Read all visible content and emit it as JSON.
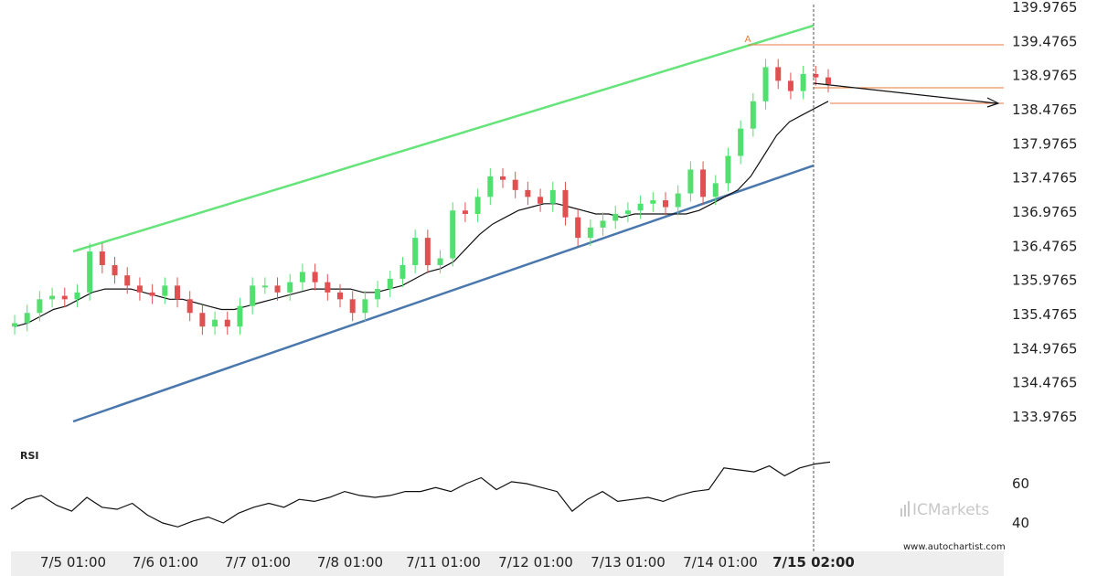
{
  "chart_data": {
    "type": "candlestick",
    "price_axis": {
      "ticks": [
        "139.9765",
        "139.4765",
        "138.9765",
        "138.4765",
        "137.9765",
        "137.4765",
        "136.9765",
        "136.4765",
        "135.9765",
        "135.4765",
        "134.9765",
        "134.4765",
        "133.9765"
      ],
      "range": [
        133.7,
        140.0
      ]
    },
    "time_axis": {
      "ticks": [
        "7/5 01:00",
        "7/6 01:00",
        "7/7 01:00",
        "7/8 01:00",
        "7/11 01:00",
        "7/12 01:00",
        "7/13 01:00",
        "7/14 01:00",
        "7/15 02:00"
      ],
      "highlight": "7/15 02:00"
    },
    "series": [
      {
        "values": [
          135.35,
          135.5,
          135.7,
          135.75,
          135.7,
          135.8,
          136.4,
          136.2,
          136.05,
          135.9,
          135.8,
          135.75,
          135.9,
          135.7,
          135.5,
          135.3,
          135.4,
          135.3,
          135.6,
          135.9,
          135.9,
          135.8,
          135.95,
          136.1,
          135.95,
          135.8,
          135.7,
          135.5,
          135.7,
          135.85,
          136.0,
          136.2,
          136.6,
          136.2,
          136.3,
          137.0,
          136.95,
          137.2,
          137.5,
          137.45,
          137.3,
          137.2,
          137.1,
          137.3,
          136.9,
          136.6,
          136.75,
          136.85,
          136.95,
          137.0,
          137.1,
          137.15,
          137.05,
          137.25,
          137.6,
          137.2,
          137.4,
          137.8,
          138.2,
          138.6,
          139.1,
          138.9,
          138.75,
          139.0,
          138.95,
          138.85
        ]
      },
      {
        "values": [
          135.3,
          135.35,
          135.45,
          135.55,
          135.6,
          135.7,
          135.8,
          135.85,
          135.85,
          135.85,
          135.8,
          135.75,
          135.7,
          135.7,
          135.65,
          135.6,
          135.55,
          135.55,
          135.6,
          135.65,
          135.7,
          135.75,
          135.8,
          135.85,
          135.85,
          135.85,
          135.85,
          135.8,
          135.8,
          135.85,
          135.9,
          136.0,
          136.1,
          136.15,
          136.25,
          136.45,
          136.65,
          136.8,
          136.9,
          137.0,
          137.05,
          137.1,
          137.1,
          137.05,
          137.0,
          136.95,
          136.95,
          136.9,
          136.95,
          136.95,
          136.95,
          136.95,
          136.95,
          137.0,
          137.1,
          137.2,
          137.3,
          137.5,
          137.8,
          138.1,
          138.3,
          138.4,
          138.5,
          138.6
        ]
      },
      {
        "values": [
          47,
          52,
          54,
          49,
          46,
          53,
          48,
          47,
          50,
          44,
          40,
          38,
          41,
          43,
          40,
          45,
          48,
          50,
          48,
          52,
          51,
          53,
          56,
          54,
          53,
          54,
          56,
          56,
          58,
          56,
          60,
          63,
          57,
          61,
          60,
          58,
          56,
          46,
          52,
          56,
          51,
          52,
          53,
          51,
          54,
          56,
          57,
          68,
          67,
          66,
          69,
          64,
          68,
          70,
          71
        ]
      }
    ],
    "annotations": {
      "pattern": "Ascending channel",
      "marker": "A",
      "rsi_label": "RSI",
      "rsi_ticks": [
        "60",
        "40"
      ]
    }
  },
  "brand": {
    "logo_text": "ICMarkets",
    "site": "www.autochartist.com"
  },
  "colors": {
    "upper_line": "#66e37a",
    "lower_line": "#4a78ad",
    "bull": "#51e06f",
    "bear": "#e05050",
    "level": "#e8793e",
    "ma": "#111111"
  }
}
